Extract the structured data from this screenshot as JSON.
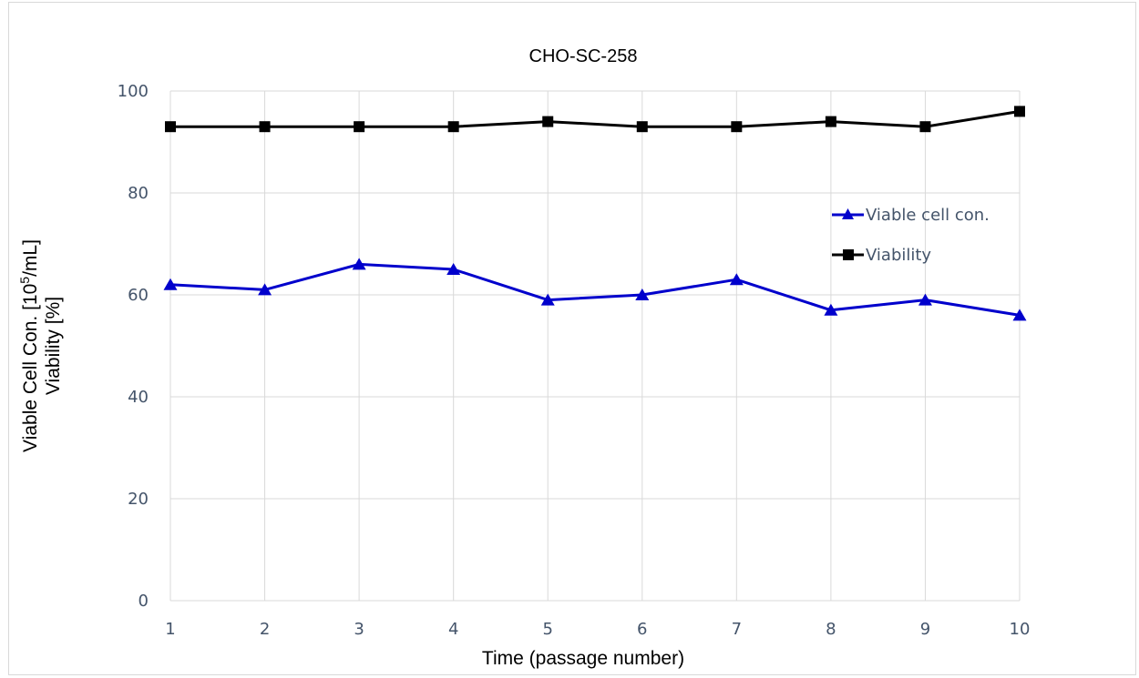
{
  "chart_data": {
    "type": "line",
    "title": "CHO-SC-258",
    "xlabel": "Time  (passage number)",
    "ylabel_line1": "Viable Cell Con.  [10",
    "ylabel_sup": "5",
    "ylabel_line1_end": "/mL]",
    "ylabel_line2": "Viability  [%]",
    "x": [
      1,
      2,
      3,
      4,
      5,
      6,
      7,
      8,
      9,
      10
    ],
    "ylim": [
      0,
      100
    ],
    "yticks": [
      0,
      20,
      40,
      60,
      80,
      100
    ],
    "grid": true,
    "legend_position": "right",
    "series": [
      {
        "name": "Viable cell con.",
        "color": "#0000cc",
        "marker": "triangle",
        "values": [
          62,
          61,
          66,
          65,
          59,
          60,
          63,
          57,
          59,
          56
        ]
      },
      {
        "name": "Viability",
        "color": "#000000",
        "marker": "square",
        "values": [
          93,
          93,
          93,
          93,
          94,
          93,
          93,
          94,
          93,
          96
        ]
      }
    ]
  }
}
